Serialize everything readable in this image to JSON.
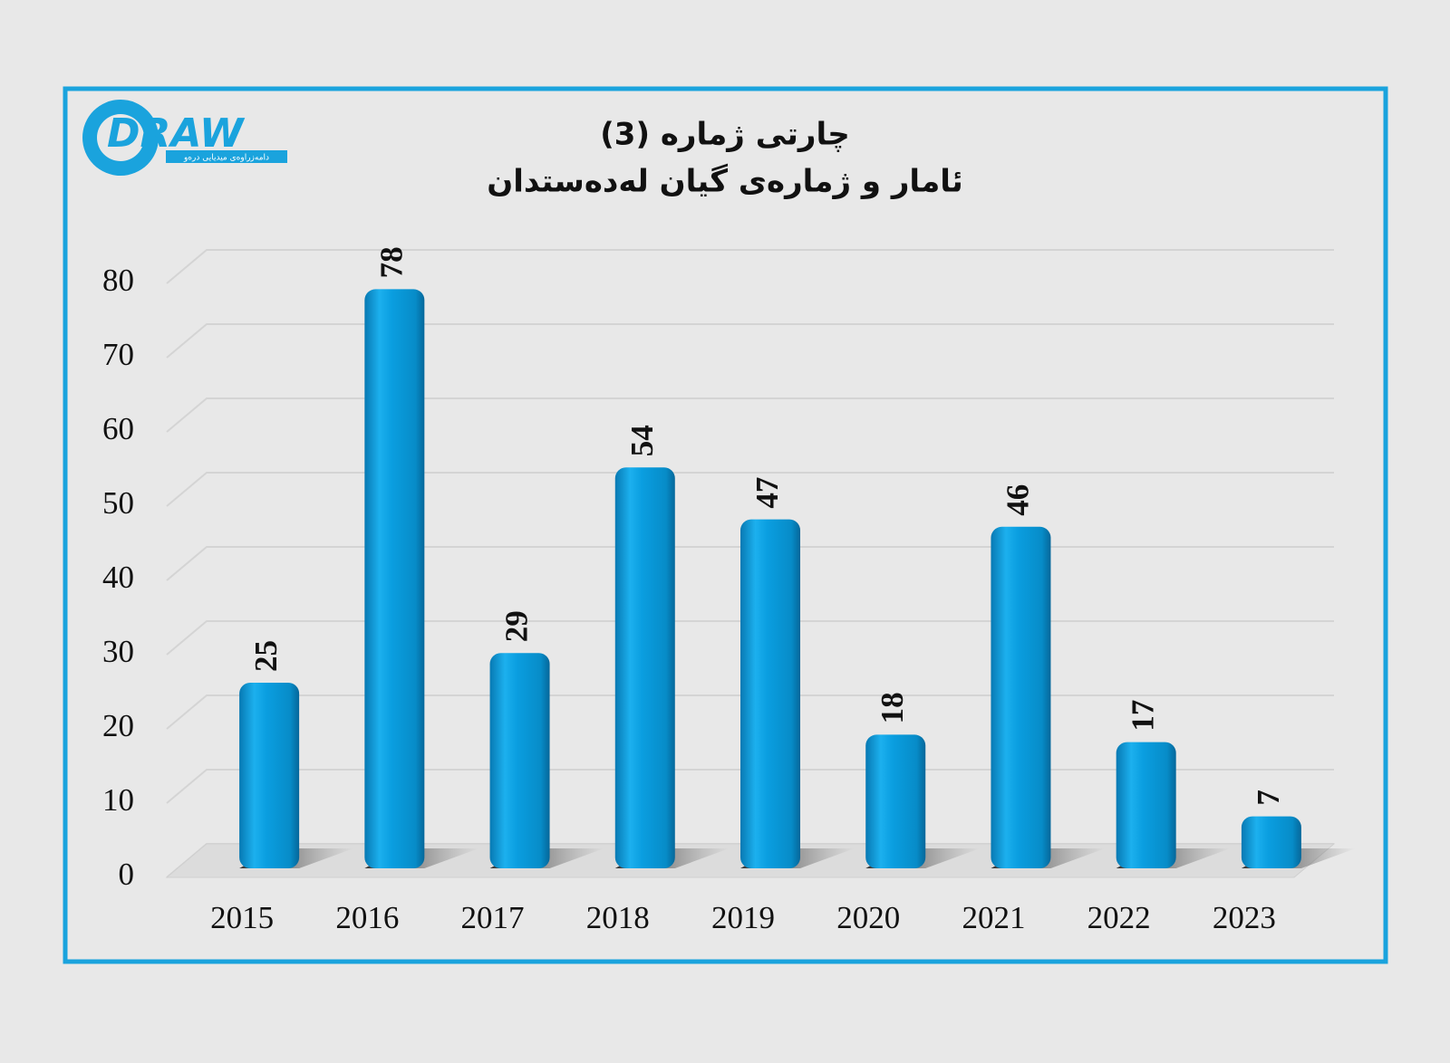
{
  "logo": {
    "text": "DRAW",
    "tagline": "دامەزراوەی میدیایی درەو"
  },
  "chart_data": {
    "type": "bar",
    "title": "چارتی ژمارە (3)",
    "subtitle": "ئامار و ژمارەی گیان لەدەستدان",
    "categories": [
      "2015",
      "2016",
      "2017",
      "2018",
      "2019",
      "2020",
      "2021",
      "2022",
      "2023"
    ],
    "values": [
      25,
      78,
      29,
      54,
      47,
      18,
      46,
      17,
      7
    ],
    "color": "#0a9ee0",
    "ylim": [
      0,
      80
    ],
    "yticks": [
      0,
      10,
      20,
      30,
      40,
      50,
      60,
      70,
      80
    ],
    "grid": true
  }
}
